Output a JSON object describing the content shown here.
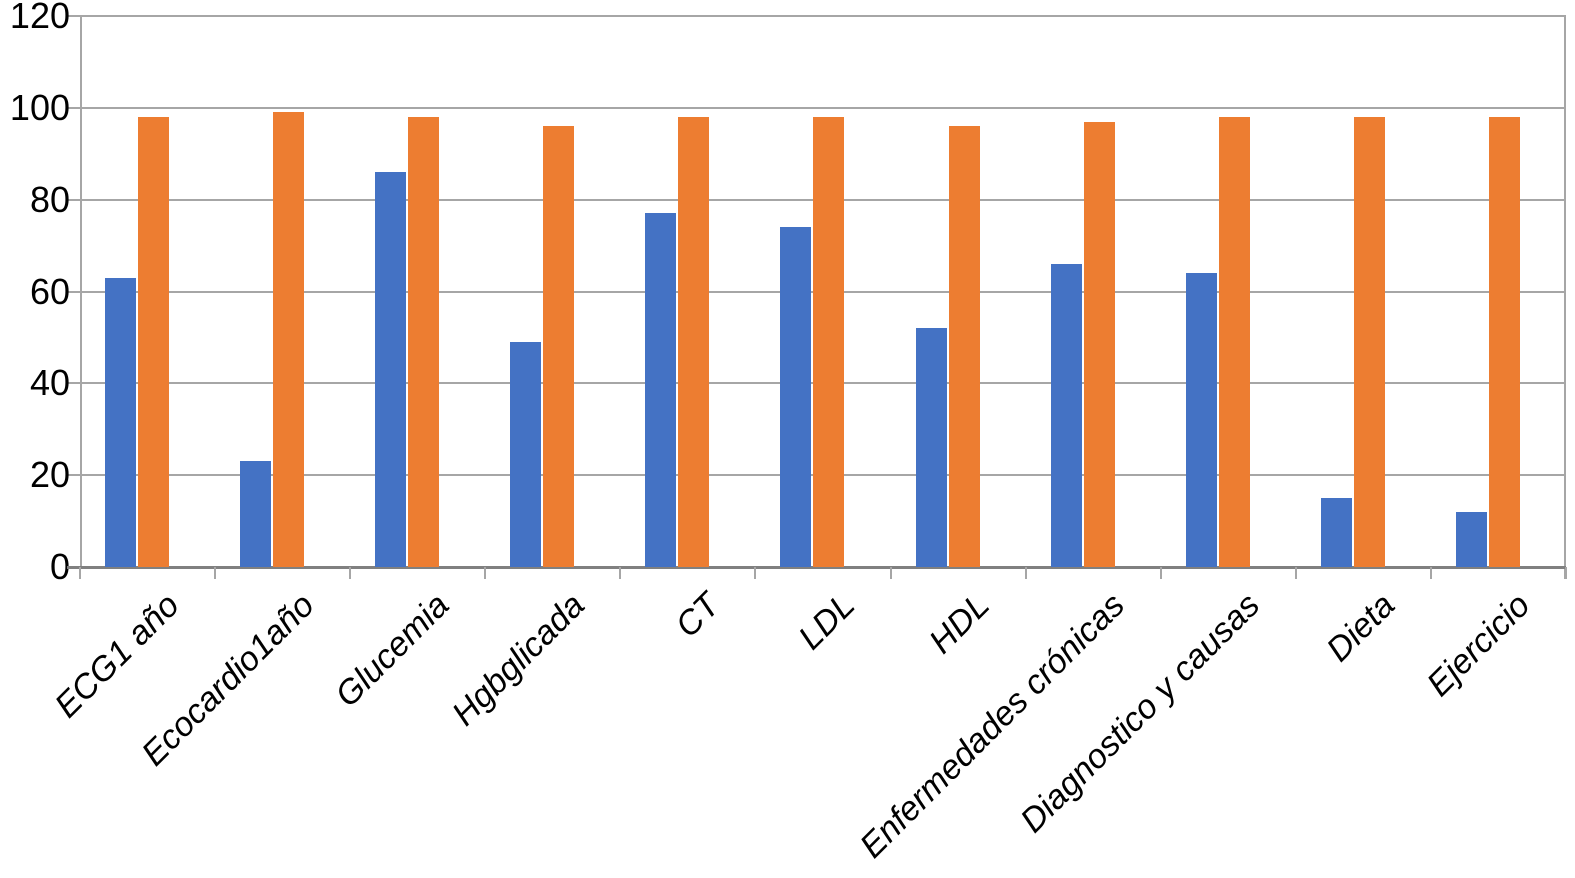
{
  "chart_data": {
    "type": "bar",
    "title": "",
    "xlabel": "",
    "ylabel": "",
    "categories": [
      "ECG1 año",
      "Ecocardio1año",
      "Glucemia",
      "Hgbglicada",
      "CT",
      "LDL",
      "HDL",
      "Enfermedades crónicas",
      "Diagnostico y causas",
      "Dieta",
      "Ejercicio"
    ],
    "series": [
      {
        "name": "series-blue",
        "color": "#4472C4",
        "values": [
          63,
          23,
          86,
          49,
          77,
          74,
          52,
          66,
          64,
          15,
          12
        ]
      },
      {
        "name": "series-orange",
        "color": "#ED7D31",
        "values": [
          98,
          99,
          98,
          96,
          98,
          98,
          96,
          97,
          98,
          98,
          98
        ]
      }
    ],
    "ylim": [
      0,
      120
    ],
    "yticks": [
      0,
      20,
      40,
      60,
      80,
      100,
      120
    ],
    "grid": true,
    "legend": "none"
  },
  "colors": {
    "gridline": "#a6a6a6",
    "axis": "#808080",
    "text": "#000000",
    "background": "#ffffff"
  }
}
